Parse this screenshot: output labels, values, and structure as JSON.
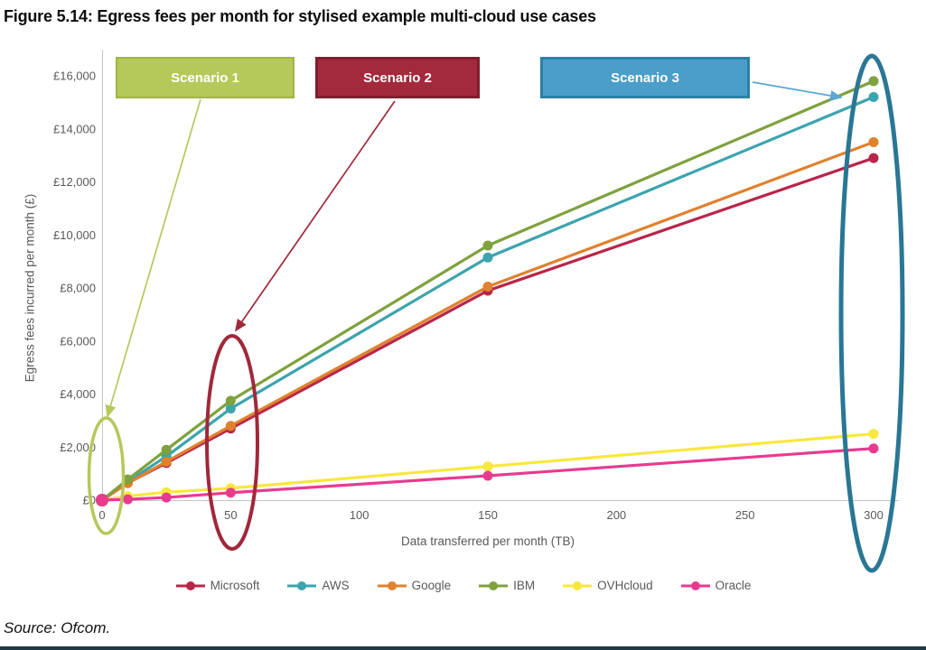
{
  "figure": {
    "title": "Figure 5.14: Egress fees per month for stylised example multi-cloud use cases",
    "source": "Source: Ofcom."
  },
  "scenarios": [
    {
      "label": "Scenario 1",
      "fill": "#b5c85a",
      "border": "#9fb542",
      "text_color": "#ffffff"
    },
    {
      "label": "Scenario 2",
      "fill": "#a3293c",
      "border": "#7e1f2e",
      "text_color": "#ffffff"
    },
    {
      "label": "Scenario 3",
      "fill": "#4a9ec9",
      "border": "#2d7fa3",
      "text_color": "#ffffff"
    }
  ],
  "chart_data": {
    "type": "line",
    "title": "",
    "xlabel": "Data transferred per month (TB)",
    "ylabel": "Egress fees incurred per month (£)",
    "x": [
      0,
      10,
      25,
      50,
      150,
      300
    ],
    "series": [
      {
        "name": "Microsoft",
        "color": "#b8264a",
        "values": [
          0,
          650,
          1400,
          2700,
          7900,
          12900
        ]
      },
      {
        "name": "AWS",
        "color": "#3ba4ae",
        "values": [
          0,
          700,
          1650,
          3450,
          9150,
          15200
        ]
      },
      {
        "name": "Google",
        "color": "#e0812d",
        "values": [
          0,
          640,
          1450,
          2800,
          8050,
          13500
        ]
      },
      {
        "name": "IBM",
        "color": "#7fa13e",
        "values": [
          0,
          780,
          1900,
          3750,
          9600,
          15800
        ]
      },
      {
        "name": "OVHcloud",
        "color": "#f8e73c",
        "values": [
          0,
          150,
          300,
          450,
          1270,
          2500
        ]
      },
      {
        "name": "Oracle",
        "color": "#e83b90",
        "values": [
          0,
          30,
          100,
          280,
          920,
          1950
        ]
      }
    ],
    "x_ticks": [
      0,
      50,
      100,
      150,
      200,
      250,
      300
    ],
    "y_ticks": [
      {
        "value": 0,
        "label": "£0"
      },
      {
        "value": 2000,
        "label": "£2,000"
      },
      {
        "value": 4000,
        "label": "£4,000"
      },
      {
        "value": 6000,
        "label": "£6,000"
      },
      {
        "value": 8000,
        "label": "£8,000"
      },
      {
        "value": 10000,
        "label": "£10,000"
      },
      {
        "value": 12000,
        "label": "£12,000"
      },
      {
        "value": 14000,
        "label": "£14,000"
      },
      {
        "value": 16000,
        "label": "£16,000"
      }
    ],
    "xlim": [
      0,
      300
    ],
    "ylim": [
      0,
      16000
    ],
    "grid": false,
    "legend_position": "bottom",
    "annotations": [
      {
        "type": "ellipse",
        "refers_to": "Scenario 1",
        "x_tb": 0,
        "color": "#b5c85a"
      },
      {
        "type": "ellipse",
        "refers_to": "Scenario 2",
        "x_tb": 50,
        "color": "#a0283a"
      },
      {
        "type": "ellipse",
        "refers_to": "Scenario 3",
        "x_tb": 300,
        "color": "#2a7695"
      },
      {
        "type": "arrow",
        "from": "Scenario 1 box",
        "to": "ellipse at 0 TB",
        "color": "#b5c85a"
      },
      {
        "type": "arrow",
        "from": "Scenario 2 box",
        "to": "ellipse at 50 TB",
        "color": "#a0283a"
      },
      {
        "type": "arrow",
        "from": "Scenario 3 box",
        "to": "ellipse at 300 TB",
        "color": "#5aa7d1"
      }
    ],
    "colors": {
      "axis_text": "#595959",
      "axis_line": "#c6c6c6"
    }
  },
  "footer_bar_color": "#1e3a47"
}
